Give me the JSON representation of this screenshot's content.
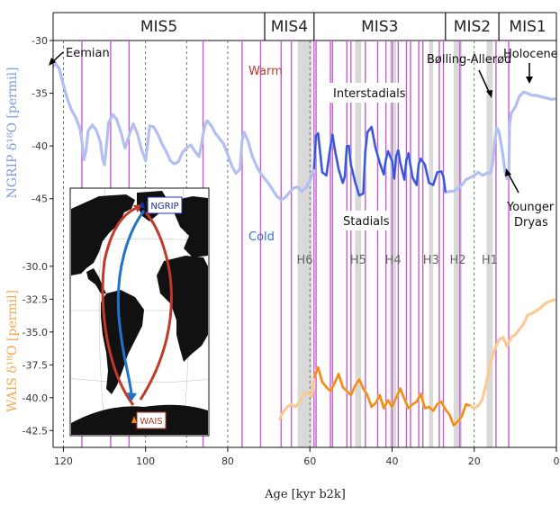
{
  "chart_data": [
    {
      "type": "line",
      "panel": "NGRIP",
      "ylabel": "NGRIP δ¹⁸O [permil]",
      "ylim": [
        -47.5,
        -30
      ],
      "yticks": [
        -30,
        -35,
        -40,
        -45
      ],
      "xlim": [
        123,
        0
      ],
      "x_reversed": true,
      "series": [
        {
          "color": "#b3bff0",
          "highlight_color": "#3a52d6",
          "highlight_range": [
            59,
            27
          ],
          "points": [
            [
              122.5,
              -32.5
            ],
            [
              122,
              -32.1
            ],
            [
              121,
              -32.7
            ],
            [
              120,
              -34.2
            ],
            [
              119,
              -35.6
            ],
            [
              118,
              -36.6
            ],
            [
              117,
              -37.3
            ],
            [
              116,
              -38.3
            ],
            [
              115.5,
              -39.5
            ],
            [
              115,
              -41.3
            ],
            [
              114.5,
              -40.5
            ],
            [
              114,
              -38.6
            ],
            [
              113,
              -38.0
            ],
            [
              112,
              -38.5
            ],
            [
              111,
              -39.6
            ],
            [
              110.5,
              -41.2
            ],
            [
              110,
              -41.8
            ],
            [
              109.5,
              -40.0
            ],
            [
              109,
              -37.8
            ],
            [
              108,
              -37.0
            ],
            [
              107,
              -37.5
            ],
            [
              106,
              -38.7
            ],
            [
              105,
              -40.2
            ],
            [
              104,
              -39.0
            ],
            [
              103,
              -37.9
            ],
            [
              102,
              -38.8
            ],
            [
              101,
              -40.3
            ],
            [
              100,
              -41.4
            ],
            [
              99.5,
              -39.8
            ],
            [
              99,
              -38.1
            ],
            [
              98,
              -38.2
            ],
            [
              97,
              -38.9
            ],
            [
              96,
              -39.8
            ],
            [
              95,
              -40.5
            ],
            [
              94,
              -41.4
            ],
            [
              93,
              -41.7
            ],
            [
              92,
              -41.5
            ],
            [
              91,
              -40.6
            ],
            [
              90,
              -40.2
            ],
            [
              89,
              -39.9
            ],
            [
              88,
              -40.5
            ],
            [
              87,
              -41.0
            ],
            [
              86.5,
              -40.1
            ],
            [
              86,
              -38.9
            ],
            [
              85.5,
              -38.0
            ],
            [
              85,
              -37.6
            ],
            [
              84,
              -38.1
            ],
            [
              83,
              -38.8
            ],
            [
              82,
              -39.3
            ],
            [
              81,
              -39.8
            ],
            [
              80,
              -40.8
            ],
            [
              79,
              -41.9
            ],
            [
              78,
              -42.6
            ],
            [
              77,
              -42.2
            ],
            [
              76.5,
              -39.5
            ],
            [
              76,
              -38.7
            ],
            [
              75,
              -39.6
            ],
            [
              74,
              -41.0
            ],
            [
              73,
              -41.9
            ],
            [
              72,
              -42.6
            ],
            [
              71,
              -43.1
            ],
            [
              70,
              -43.6
            ],
            [
              69,
              -44.2
            ],
            [
              68,
              -44.8
            ],
            [
              67,
              -45.1
            ],
            [
              66,
              -44.9
            ],
            [
              65,
              -44.4
            ],
            [
              64,
              -44.0
            ],
            [
              63,
              -43.9
            ],
            [
              62,
              -44.3
            ],
            [
              61,
              -44.0
            ],
            [
              60,
              -43.3
            ],
            [
              59,
              -42.2
            ],
            [
              58.5,
              -39.0
            ],
            [
              58,
              -38.8
            ],
            [
              57.5,
              -40.6
            ],
            [
              57,
              -42.5
            ],
            [
              56,
              -42.8
            ],
            [
              55,
              -40.1
            ],
            [
              54.5,
              -38.9
            ],
            [
              54,
              -40.2
            ],
            [
              53,
              -42.2
            ],
            [
              52,
              -43.5
            ],
            [
              51.5,
              -42.9
            ],
            [
              51,
              -40.0
            ],
            [
              50.5,
              -40.0
            ],
            [
              50,
              -41.8
            ],
            [
              49,
              -43.4
            ],
            [
              48,
              -44.7
            ],
            [
              47,
              -44.5
            ],
            [
              46.5,
              -40.5
            ],
            [
              46,
              -38.7
            ],
            [
              45,
              -38.2
            ],
            [
              44,
              -40.2
            ],
            [
              43,
              -41.6
            ],
            [
              42,
              -42.7
            ],
            [
              41.5,
              -41.3
            ],
            [
              41,
              -40.5
            ],
            [
              40,
              -41.4
            ],
            [
              39.5,
              -43.1
            ],
            [
              39,
              -41.0
            ],
            [
              38.5,
              -40.4
            ],
            [
              38,
              -41.6
            ],
            [
              37,
              -43.2
            ],
            [
              36.5,
              -41.3
            ],
            [
              36,
              -40.7
            ],
            [
              35.5,
              -41.9
            ],
            [
              35,
              -43.0
            ],
            [
              34,
              -43.7
            ],
            [
              33.5,
              -41.7
            ],
            [
              33,
              -41.2
            ],
            [
              32,
              -41.8
            ],
            [
              31,
              -43.5
            ],
            [
              30,
              -43.7
            ],
            [
              29,
              -42.5
            ],
            [
              28,
              -42.4
            ],
            [
              27.5,
              -42.9
            ],
            [
              27,
              -44.4
            ],
            [
              26,
              -44.3
            ],
            [
              25,
              -44.3
            ],
            [
              24,
              -44.0
            ],
            [
              23,
              -43.7
            ],
            [
              22,
              -43.2
            ],
            [
              21,
              -43.0
            ],
            [
              20,
              -42.8
            ],
            [
              19,
              -42.5
            ],
            [
              18,
              -42.8
            ],
            [
              17,
              -42.6
            ],
            [
              16,
              -42.5
            ],
            [
              15.5,
              -41.6
            ],
            [
              15,
              -39.5
            ],
            [
              14.5,
              -38.3
            ],
            [
              14,
              -38.6
            ],
            [
              13.5,
              -39.7
            ],
            [
              13,
              -40.9
            ],
            [
              12.5,
              -42.5
            ],
            [
              12,
              -43.1
            ],
            [
              11.6,
              -42.7
            ],
            [
              11.4,
              -38.0
            ],
            [
              11,
              -36.9
            ],
            [
              10,
              -36.3
            ],
            [
              9,
              -35.3
            ],
            [
              8,
              -34.9
            ],
            [
              7,
              -35.0
            ],
            [
              6,
              -35.2
            ],
            [
              5,
              -35.2
            ],
            [
              4,
              -35.3
            ],
            [
              3,
              -35.4
            ],
            [
              2,
              -35.5
            ],
            [
              1,
              -35.6
            ],
            [
              0.2,
              -35.5
            ]
          ]
        }
      ]
    },
    {
      "type": "line",
      "panel": "WAIS",
      "ylabel": "WAIS δ¹⁸O [permil]",
      "ylim": [
        -43.3,
        -29.6
      ],
      "yticks": [
        -30.0,
        -32.5,
        -35.0,
        -37.5,
        -40.0,
        -42.5
      ],
      "xlim": [
        123,
        0
      ],
      "x_reversed": true,
      "series": [
        {
          "color": "#fcc994",
          "highlight_color": "#f08a10",
          "highlight_range": [
            59,
            21
          ],
          "points": [
            [
              67.5,
              -41.7
            ],
            [
              66.5,
              -41.1
            ],
            [
              65.5,
              -40.7
            ],
            [
              64.5,
              -40.5
            ],
            [
              63.5,
              -40.7
            ],
            [
              62.5,
              -40.3
            ],
            [
              61.5,
              -39.7
            ],
            [
              60.5,
              -39.6
            ],
            [
              59.5,
              -39.9
            ],
            [
              59,
              -38.5
            ],
            [
              58,
              -37.7
            ],
            [
              57,
              -38.8
            ],
            [
              56,
              -39.2
            ],
            [
              55,
              -39.5
            ],
            [
              54,
              -38.9
            ],
            [
              53,
              -38.2
            ],
            [
              52,
              -39.2
            ],
            [
              51,
              -39.5
            ],
            [
              50,
              -39.8
            ],
            [
              49,
              -39.1
            ],
            [
              48,
              -38.6
            ],
            [
              47,
              -39.3
            ],
            [
              46,
              -39.8
            ],
            [
              45,
              -40.7
            ],
            [
              44,
              -40.4
            ],
            [
              43,
              -39.8
            ],
            [
              42,
              -40.8
            ],
            [
              41,
              -40.2
            ],
            [
              40,
              -40.7
            ],
            [
              39,
              -40.0
            ],
            [
              38,
              -39.3
            ],
            [
              37,
              -40.1
            ],
            [
              36,
              -40.8
            ],
            [
              35,
              -40.5
            ],
            [
              34,
              -40.3
            ],
            [
              33,
              -39.7
            ],
            [
              32,
              -40.8
            ],
            [
              31,
              -40.7
            ],
            [
              30,
              -41.0
            ],
            [
              29,
              -40.5
            ],
            [
              28,
              -40.3
            ],
            [
              27,
              -40.9
            ],
            [
              26,
              -41.3
            ],
            [
              25,
              -42.1
            ],
            [
              24,
              -41.8
            ],
            [
              23,
              -41.4
            ],
            [
              22,
              -40.5
            ],
            [
              21,
              -40.6
            ],
            [
              20,
              -40.8
            ],
            [
              19,
              -40.6
            ],
            [
              18,
              -40.1
            ],
            [
              17,
              -38.8
            ],
            [
              16,
              -37.3
            ],
            [
              15,
              -36.3
            ],
            [
              14,
              -35.6
            ],
            [
              13,
              -35.4
            ],
            [
              12,
              -36.1
            ],
            [
              11,
              -35.4
            ],
            [
              10,
              -35.2
            ],
            [
              9,
              -34.8
            ],
            [
              8,
              -34.4
            ],
            [
              7,
              -33.7
            ],
            [
              6,
              -33.6
            ],
            [
              5,
              -33.4
            ],
            [
              4,
              -33.2
            ],
            [
              3,
              -32.9
            ],
            [
              2,
              -32.7
            ],
            [
              1,
              -32.6
            ],
            [
              0.3,
              -32.5
            ]
          ]
        }
      ]
    }
  ],
  "mis_periods": [
    {
      "label": "MIS5",
      "start": 123,
      "end": 71
    },
    {
      "label": "MIS4",
      "start": 71,
      "end": 59
    },
    {
      "label": "MIS3",
      "start": 59,
      "end": 27
    },
    {
      "label": "MIS2",
      "start": 27,
      "end": 14
    },
    {
      "label": "MIS1",
      "start": 14,
      "end": 0
    }
  ],
  "heinrich_events": [
    {
      "label": "H6",
      "start": 63,
      "end": 59.5
    },
    {
      "label": "H5",
      "start": 49,
      "end": 47.5
    },
    {
      "label": "H4",
      "start": 40.5,
      "end": 39
    },
    {
      "label": "H3",
      "start": 31,
      "end": 30
    },
    {
      "label": "H2",
      "start": 25,
      "end": 23
    },
    {
      "label": "H1",
      "start": 17,
      "end": 15.5
    }
  ],
  "interstadial_onsets": [
    115.5,
    108.5,
    104,
    86,
    76.5,
    72,
    67,
    64.5,
    59,
    58.5,
    55,
    54.5,
    51,
    50,
    46.5,
    43.5,
    41.5,
    40,
    38.5,
    36.5,
    35.5,
    33.5,
    32.5,
    28.5,
    27.5,
    23.5,
    14.7,
    11.6
  ],
  "dashed_lines": [
    120,
    100,
    90,
    80,
    60,
    40,
    20
  ],
  "xaxis": {
    "label": "Age [kyr b2k]",
    "ticks": [
      120,
      100,
      80,
      60,
      40,
      20,
      0
    ]
  },
  "annotations": {
    "eemian": "Eemian",
    "warm": "Warm",
    "cold": "Cold",
    "interstadials": "Interstadials",
    "stadials": "Stadials",
    "bolling": "Bølling-Allerød",
    "holocene": "Holocene",
    "younger": "Younger",
    "dryas": "Dryas"
  },
  "inset": {
    "ngrip_label": "NGRIP",
    "wais_label": "WAIS"
  },
  "colors": {
    "ngrip_light": "#b3bff0",
    "ngrip_dark": "#3a52d6",
    "wais_light": "#fcc994",
    "wais_dark": "#f08a10",
    "event_line": "#c35ed0",
    "shade": "#d9d9d9",
    "warm": "#c0392b",
    "cold": "#3a6fd6"
  }
}
